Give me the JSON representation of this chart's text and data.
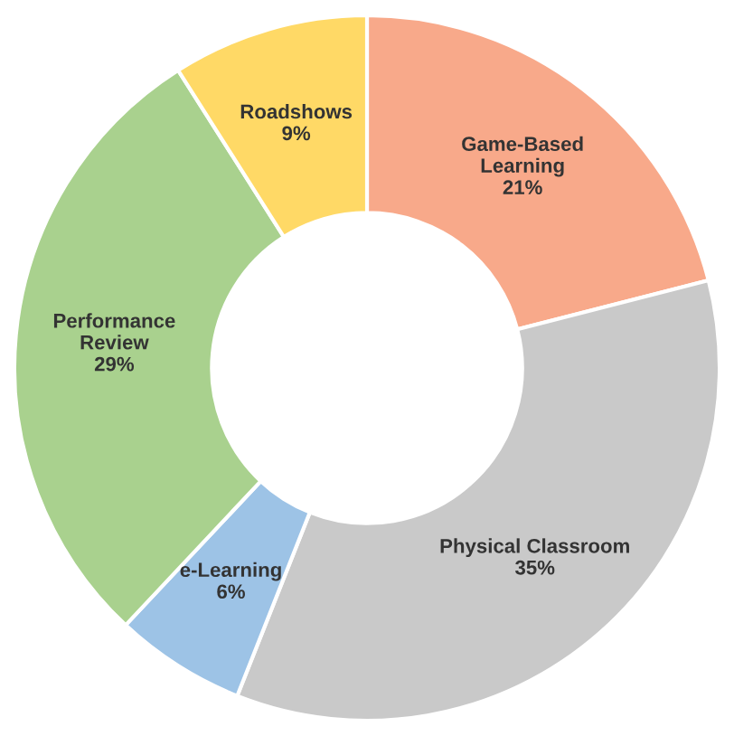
{
  "chart_data": {
    "type": "donut",
    "categories": [
      "Game-Based\nLearning",
      "Physical Classroom",
      "e-Learning",
      "Performance\nReview",
      "Roadshows"
    ],
    "values": [
      21,
      35,
      6,
      29,
      9
    ],
    "value_labels": [
      "21%",
      "35%",
      "6%",
      "29%",
      "9%"
    ],
    "colors": [
      "#f8a98a",
      "#c9c9c9",
      "#9dc3e6",
      "#a9d18e",
      "#ffd966"
    ],
    "legend": false
  }
}
